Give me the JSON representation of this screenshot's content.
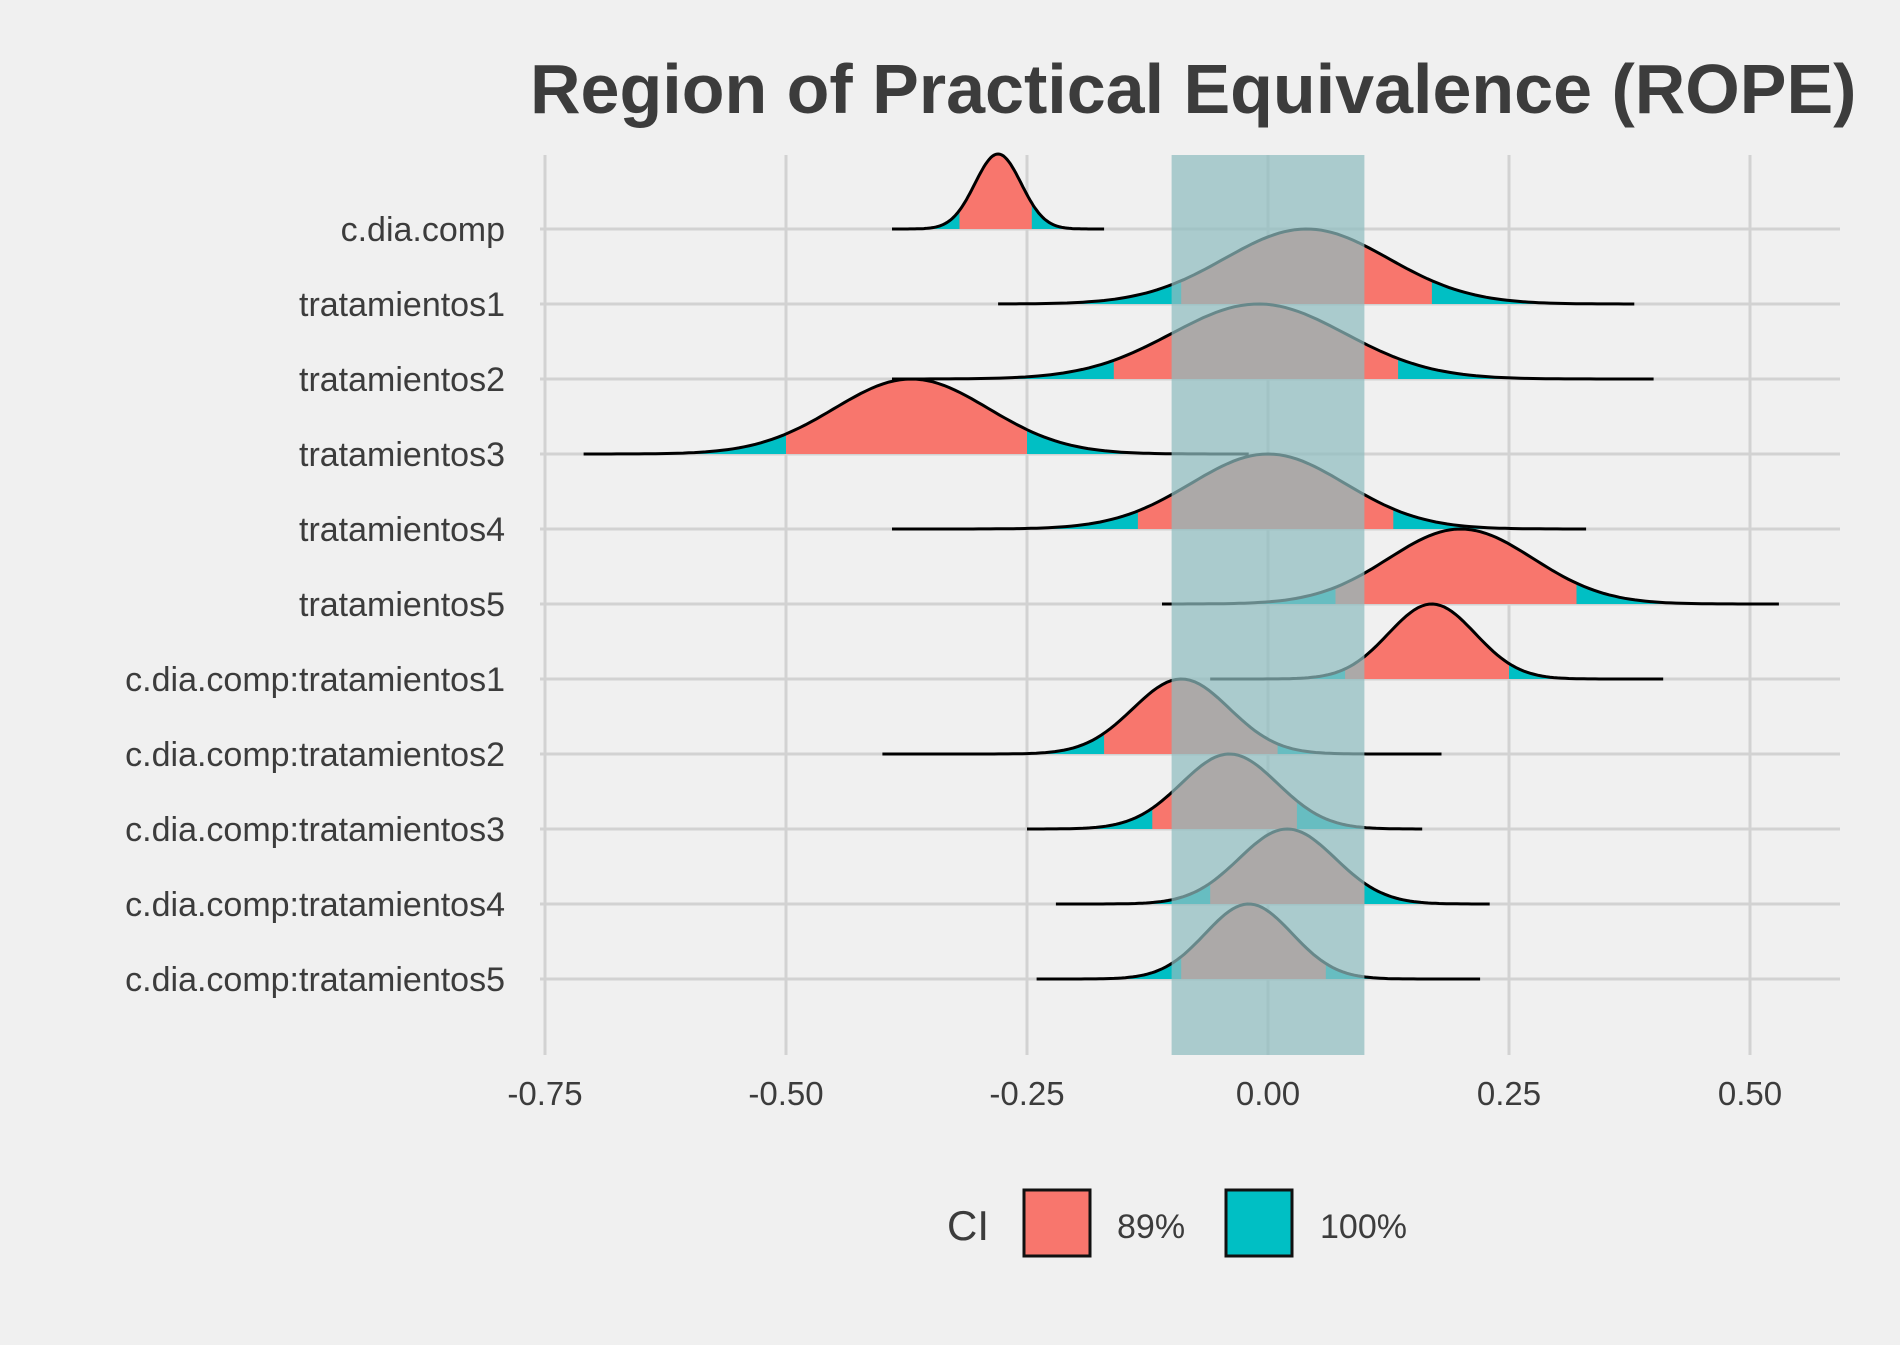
{
  "chart_data": {
    "type": "ridgeline-density",
    "title": "Region of Practical Equivalence (ROPE)",
    "xlabel": "",
    "ylabel": "",
    "xlim": [
      -0.75,
      0.52
    ],
    "x_ticks": [
      -0.75,
      -0.5,
      -0.25,
      0.0,
      0.25,
      0.5
    ],
    "x_tick_labels": [
      "-0.75",
      "-0.50",
      "-0.25",
      "0.00",
      "0.25",
      "0.50"
    ],
    "rope": [
      -0.1,
      0.1
    ],
    "rope_color": "#8fbcbf",
    "grid": true,
    "legend": {
      "title": "CI",
      "position": "bottom",
      "entries": [
        {
          "label": "89%",
          "color": "#f8766d"
        },
        {
          "label": "100%",
          "color": "#00bfc4"
        }
      ]
    },
    "parameters": [
      {
        "name": "c.dia.comp",
        "median": -0.28,
        "sd": 0.024,
        "ci89": [
          -0.32,
          -0.245
        ],
        "range": [
          -0.39,
          -0.17
        ]
      },
      {
        "name": "tratamientos1",
        "median": 0.04,
        "sd": 0.085,
        "ci89": [
          -0.09,
          0.17
        ],
        "range": [
          -0.28,
          0.38
        ]
      },
      {
        "name": "tratamientos2",
        "median": -0.01,
        "sd": 0.09,
        "ci89": [
          -0.16,
          0.135
        ],
        "range": [
          -0.39,
          0.4
        ]
      },
      {
        "name": "tratamientos3",
        "median": -0.37,
        "sd": 0.08,
        "ci89": [
          -0.5,
          -0.25
        ],
        "range": [
          -0.71,
          -0.02
        ]
      },
      {
        "name": "tratamientos4",
        "median": 0.0,
        "sd": 0.08,
        "ci89": [
          -0.135,
          0.13
        ],
        "range": [
          -0.39,
          0.33
        ]
      },
      {
        "name": "tratamientos5",
        "median": 0.2,
        "sd": 0.075,
        "ci89": [
          0.07,
          0.32
        ],
        "range": [
          -0.11,
          0.53
        ]
      },
      {
        "name": "c.dia.comp:tratamientos1",
        "median": 0.17,
        "sd": 0.045,
        "ci89": [
          0.08,
          0.25
        ],
        "range": [
          -0.06,
          0.41
        ]
      },
      {
        "name": "c.dia.comp:tratamientos2",
        "median": -0.09,
        "sd": 0.05,
        "ci89": [
          -0.17,
          0.01
        ],
        "range": [
          -0.4,
          0.18
        ]
      },
      {
        "name": "c.dia.comp:tratamientos3",
        "median": -0.04,
        "sd": 0.05,
        "ci89": [
          -0.12,
          0.03
        ],
        "range": [
          -0.25,
          0.16
        ]
      },
      {
        "name": "c.dia.comp:tratamientos4",
        "median": 0.02,
        "sd": 0.05,
        "ci89": [
          -0.06,
          0.1
        ],
        "range": [
          -0.22,
          0.23
        ]
      },
      {
        "name": "c.dia.comp:tratamientos5",
        "median": -0.02,
        "sd": 0.045,
        "ci89": [
          -0.09,
          0.06
        ],
        "range": [
          -0.24,
          0.22
        ]
      }
    ]
  }
}
